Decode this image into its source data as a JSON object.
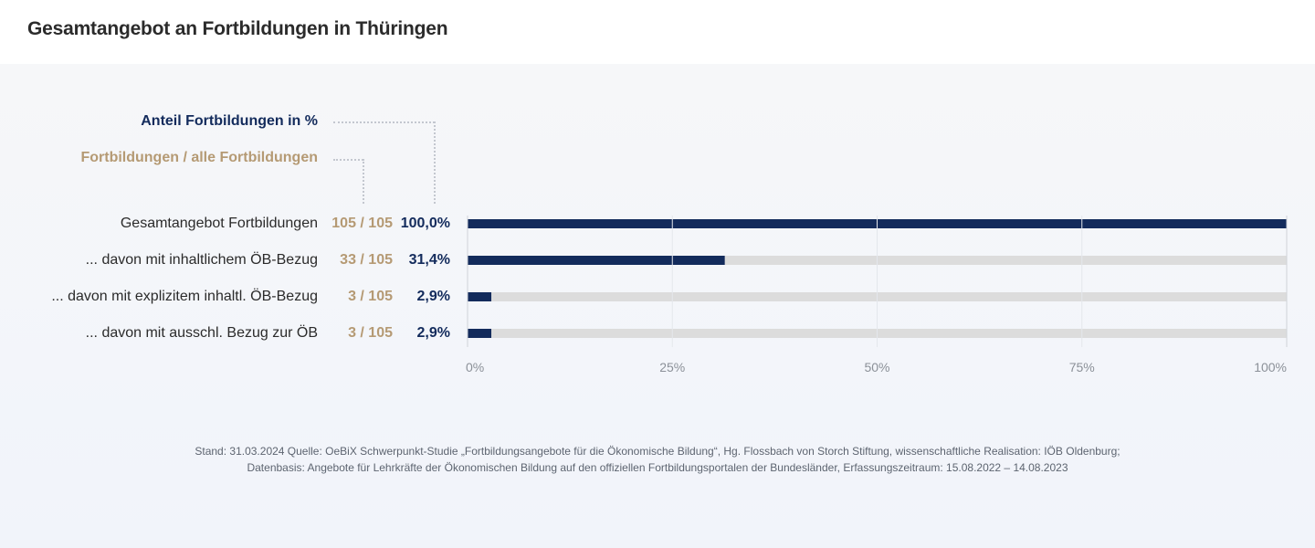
{
  "header": {
    "title": "Gesamtangebot an Fortbildungen in Thüringen"
  },
  "legend": {
    "percent_label": "Anteil Fortbildungen  in %",
    "count_label": "Fortbildungen / alle Fortbildungen"
  },
  "colors": {
    "bar": "#132b5c",
    "track": "#dcdcdc",
    "count_text": "#b59a74",
    "percent_text": "#132b5c",
    "grid": "#cfd3d9",
    "tick_text": "#8b9098"
  },
  "rows": [
    {
      "label": "Gesamtangebot Fortbildungen",
      "count": "105 / 105",
      "percent": "100,0%"
    },
    {
      "label": "... davon mit inhaltlichem ÖB-Bezug",
      "count": "33 / 105",
      "percent": "31,4%"
    },
    {
      "label": "... davon mit explizitem inhaltl. ÖB-Bezug",
      "count": "3 / 105",
      "percent": "2,9%"
    },
    {
      "label": "... davon mit ausschl. Bezug zur ÖB",
      "count": "3 / 105",
      "percent": "2,9%"
    }
  ],
  "chart_data": {
    "type": "bar",
    "orientation": "horizontal",
    "title": "Gesamtangebot an Fortbildungen in Thüringen",
    "categories": [
      "Gesamtangebot Fortbildungen",
      "... davon mit inhaltlichem ÖB-Bezug",
      "... davon mit explizitem inhaltl. ÖB-Bezug",
      "... davon mit ausschl. Bezug zur ÖB"
    ],
    "values": [
      100.0,
      31.4,
      2.9,
      2.9
    ],
    "counts": [
      105,
      33,
      3,
      3
    ],
    "total": 105,
    "xlabel": "",
    "ylabel": "",
    "xlim": [
      0,
      100
    ],
    "xticks": [
      "0%",
      "25%",
      "50%",
      "75%",
      "100%"
    ],
    "xtick_values": [
      0,
      25,
      50,
      75,
      100
    ],
    "grid": true,
    "legend": [
      "Anteil Fortbildungen  in %",
      "Fortbildungen / alle Fortbildungen"
    ],
    "legend_position": "top-left"
  },
  "footer": {
    "line1": "Stand: 31.03.2024 Quelle: OeBiX Schwerpunkt-Studie „Fortbildungsangebote für die Ökonomische Bildung“, Hg. Flossbach von Storch Stiftung, wissenschaftliche Realisation: IÖB Oldenburg;",
    "line2": "Datenbasis: Angebote für Lehrkräfte der Ökonomischen Bildung auf den offiziellen Fortbildungsportalen der Bundesländer, Erfassungszeitraum: 15.08.2022 – 14.08.2023"
  }
}
